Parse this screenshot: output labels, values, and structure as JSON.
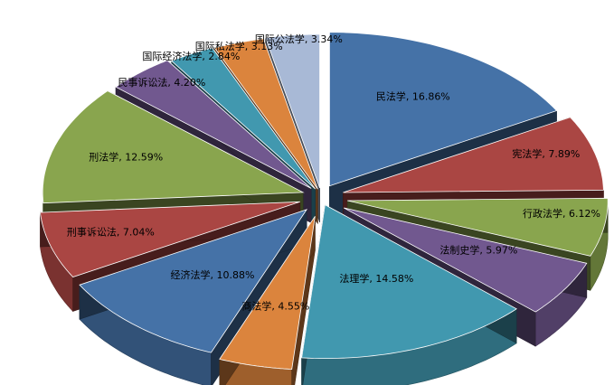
{
  "chart_data": {
    "type": "pie",
    "style": "3d-exploded",
    "title": "",
    "categories": [
      "民法学",
      "宪法学",
      "行政法学",
      "法制史学",
      "法理学",
      "商法学",
      "经济法学",
      "刑事诉讼法",
      "刑法学",
      "民事诉讼法",
      "国际经济法学",
      "国际私法学",
      "国际公法学"
    ],
    "values": [
      16.86,
      7.89,
      6.12,
      5.97,
      14.58,
      4.55,
      10.88,
      7.04,
      12.59,
      4.2,
      2.84,
      3.13,
      3.34
    ],
    "labels": [
      "民法学, 16.86%",
      "宪法学, 7.89%",
      "行政法学, 6.12%",
      "法制史学, 5.97%",
      "法理学, 14.58%",
      "商法学, 4.55%",
      "经济法学, 10.88%",
      "刑事诉讼法, 7.04%",
      "刑法学, 12.59%",
      "民事诉讼法, 4.20%",
      "国际经济法学, 2.84%",
      "国际私法学, 3.13%",
      "国际公法学, 3.34%"
    ],
    "colors": [
      "#4572A7",
      "#AA4643",
      "#89A54E",
      "#71588F",
      "#4198AF",
      "#DB843D",
      "#4572A7",
      "#AA4643",
      "#89A54E",
      "#71588F",
      "#4198AF",
      "#DB843D",
      "#A8B9D6"
    ],
    "legend": "none"
  }
}
